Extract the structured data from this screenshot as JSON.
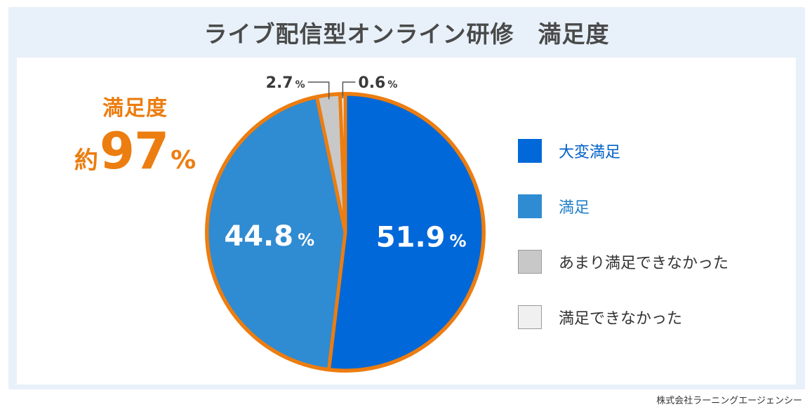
{
  "chart_data": {
    "type": "pie",
    "title": "ライブ配信型オンライン研修　満足度",
    "slices": [
      {
        "name": "大変満足",
        "value": 51.9,
        "label": "51.9",
        "color": "#0068d8",
        "legend_text_color": "#0060c8"
      },
      {
        "name": "満足",
        "value": 44.8,
        "label": "44.8",
        "color": "#2f8bd2",
        "legend_text_color": "#1f7fc8"
      },
      {
        "name": "あまり満足できなかった",
        "value": 2.7,
        "label": "2.7",
        "color": "#c8c8c8",
        "legend_text_color": "#333333"
      },
      {
        "name": "満足できなかった",
        "value": 0.6,
        "label": "0.6",
        "color": "#f0f0f0",
        "legend_text_color": "#333333"
      }
    ],
    "unit": "%",
    "highlight_color": "#ec7d10",
    "legend_position": "right"
  },
  "headline": {
    "line1": "満足度",
    "approx": "約",
    "value": "97",
    "unit": "%"
  },
  "credit": "株式会社ラーニングエージェンシー"
}
